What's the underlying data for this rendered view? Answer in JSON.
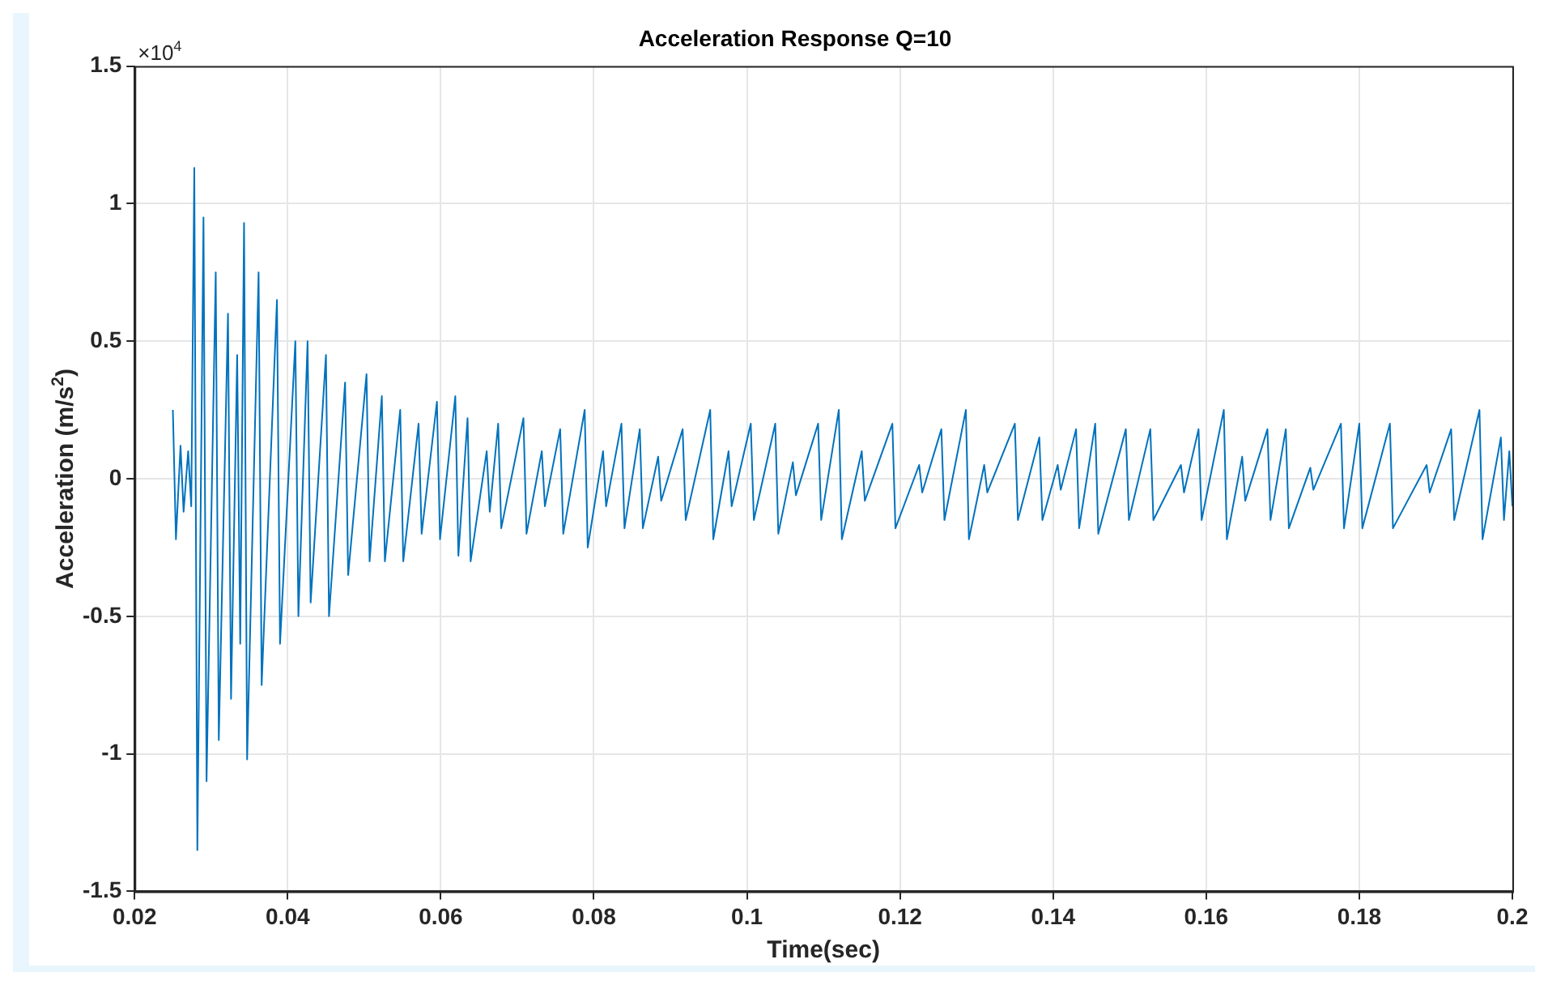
{
  "chart_data": {
    "type": "line",
    "title": "Acceleration Response Q=10",
    "xlabel": "Time(sec)",
    "ylabel": "Acceleration (m/s$^{2}$)",
    "annotations": [
      "×10$^{4}$"
    ],
    "x": [
      0.025,
      0.0254,
      0.026,
      0.0264,
      0.027,
      0.0274,
      0.0278,
      0.0282,
      0.029,
      0.0294,
      0.0306,
      0.031,
      0.0322,
      0.0326,
      0.0334,
      0.0338,
      0.0343,
      0.0347,
      0.0362,
      0.0366,
      0.0386,
      0.039,
      0.041,
      0.0414,
      0.0426,
      0.043,
      0.045,
      0.0454,
      0.0475,
      0.0479,
      0.0503,
      0.0507,
      0.0523,
      0.0527,
      0.0547,
      0.0551,
      0.0571,
      0.0575,
      0.0595,
      0.0599,
      0.0619,
      0.0623,
      0.0635,
      0.0639,
      0.066,
      0.0664,
      0.0675,
      0.0679,
      0.0708,
      0.0712,
      0.0732,
      0.0736,
      0.0756,
      0.076,
      0.0788,
      0.0792,
      0.0812,
      0.0816,
      0.0836,
      0.084,
      0.086,
      0.0864,
      0.0884,
      0.0888,
      0.0916,
      0.092,
      0.0952,
      0.0956,
      0.0976,
      0.098,
      0.1005,
      0.1009,
      0.1037,
      0.1041,
      0.106,
      0.1064,
      0.1093,
      0.1097,
      0.112,
      0.1124,
      0.115,
      0.1154,
      0.119,
      0.1194,
      0.1225,
      0.1229,
      0.1254,
      0.1258,
      0.1286,
      0.129,
      0.131,
      0.1314,
      0.135,
      0.1354,
      0.1382,
      0.1386,
      0.1406,
      0.141,
      0.143,
      0.1434,
      0.1455,
      0.1459,
      0.1495,
      0.1499,
      0.1527,
      0.1531,
      0.1567,
      0.1571,
      0.159,
      0.1594,
      0.1623,
      0.1627,
      0.1647,
      0.1651,
      0.168,
      0.1684,
      0.1704,
      0.1708,
      0.1736,
      0.174,
      0.1776,
      0.178,
      0.18,
      0.1804,
      0.184,
      0.1844,
      0.1888,
      0.1892,
      0.192,
      0.1924,
      0.1957,
      0.1961,
      0.1985,
      0.1989,
      0.1996,
      0.2
    ],
    "series": [
      {
        "color": "#0072bd",
        "values": [
          0.25,
          -0.22,
          0.12,
          -0.12,
          0.1,
          -0.1,
          1.13,
          -1.35,
          0.95,
          -1.1,
          0.75,
          -0.95,
          0.6,
          -0.8,
          0.45,
          -0.6,
          0.93,
          -1.02,
          0.75,
          -0.75,
          0.65,
          -0.6,
          0.5,
          -0.5,
          0.5,
          -0.45,
          0.45,
          -0.5,
          0.35,
          -0.35,
          0.38,
          -0.3,
          0.3,
          -0.3,
          0.25,
          -0.3,
          0.2,
          -0.2,
          0.28,
          -0.22,
          0.3,
          -0.28,
          0.22,
          -0.3,
          0.1,
          -0.12,
          0.2,
          -0.18,
          0.22,
          -0.2,
          0.1,
          -0.1,
          0.18,
          -0.2,
          0.25,
          -0.25,
          0.1,
          -0.1,
          0.2,
          -0.18,
          0.18,
          -0.18,
          0.08,
          -0.08,
          0.18,
          -0.15,
          0.25,
          -0.22,
          0.1,
          -0.1,
          0.2,
          -0.15,
          0.2,
          -0.2,
          0.06,
          -0.06,
          0.2,
          -0.15,
          0.25,
          -0.22,
          0.1,
          -0.08,
          0.2,
          -0.18,
          0.05,
          -0.05,
          0.18,
          -0.15,
          0.25,
          -0.22,
          0.05,
          -0.05,
          0.2,
          -0.15,
          0.15,
          -0.15,
          0.05,
          -0.04,
          0.18,
          -0.18,
          0.2,
          -0.2,
          0.18,
          -0.15,
          0.18,
          -0.15,
          0.05,
          -0.05,
          0.18,
          -0.15,
          0.25,
          -0.22,
          0.08,
          -0.08,
          0.18,
          -0.15,
          0.18,
          -0.18,
          0.04,
          -0.04,
          0.2,
          -0.18,
          0.2,
          -0.18,
          0.2,
          -0.18,
          0.05,
          -0.05,
          0.18,
          -0.15,
          0.25,
          -0.22,
          0.15,
          -0.15,
          0.1,
          -0.1
        ]
      }
    ],
    "xlim": [
      0.02,
      0.2
    ],
    "xticks": [
      0.02,
      0.04,
      0.06,
      0.08,
      0.1,
      0.12,
      0.14,
      0.16,
      0.18,
      0.2
    ],
    "ylim": [
      -1.5,
      1.5
    ],
    "yticks": [
      -1.5,
      -1,
      -0.5,
      0,
      0.5,
      1,
      1.5
    ],
    "grid": true,
    "legend": false,
    "marker": "none",
    "line_style": "solid"
  }
}
